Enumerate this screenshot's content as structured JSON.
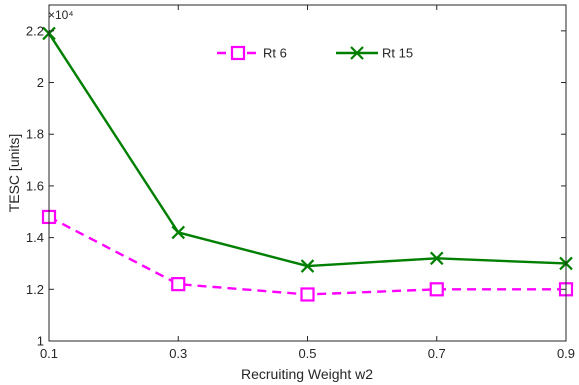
{
  "chart_data": {
    "type": "line",
    "title": "",
    "xlabel": "Recruiting Weight w2",
    "ylabel": "TESC [units]",
    "y_multiplier_label": "×10⁴",
    "x": [
      0.1,
      0.3,
      0.5,
      0.7,
      0.9
    ],
    "xlim": [
      0.1,
      0.9
    ],
    "ylim": [
      1.0,
      2.3
    ],
    "x_ticks": [
      "0.1",
      "0.3",
      "0.5",
      "0.7",
      "0.9"
    ],
    "y_tick_values": [
      1,
      1.2,
      1.4,
      1.6,
      1.8,
      2,
      2.2
    ],
    "y_ticks": [
      "1",
      "1.2",
      "1.4",
      "1.6",
      "1.8",
      "2",
      "2.2"
    ],
    "grid": false,
    "legend_position": "top",
    "series": [
      {
        "name": "Rt 6",
        "values": [
          1.48,
          1.22,
          1.18,
          1.2,
          1.2
        ],
        "color": "#ff00ff",
        "line_style": "dashed",
        "marker": "square"
      },
      {
        "name": "Rt 15",
        "values": [
          2.19,
          1.42,
          1.29,
          1.32,
          1.3
        ],
        "color": "#007f00",
        "line_style": "solid",
        "marker": "x"
      }
    ]
  }
}
